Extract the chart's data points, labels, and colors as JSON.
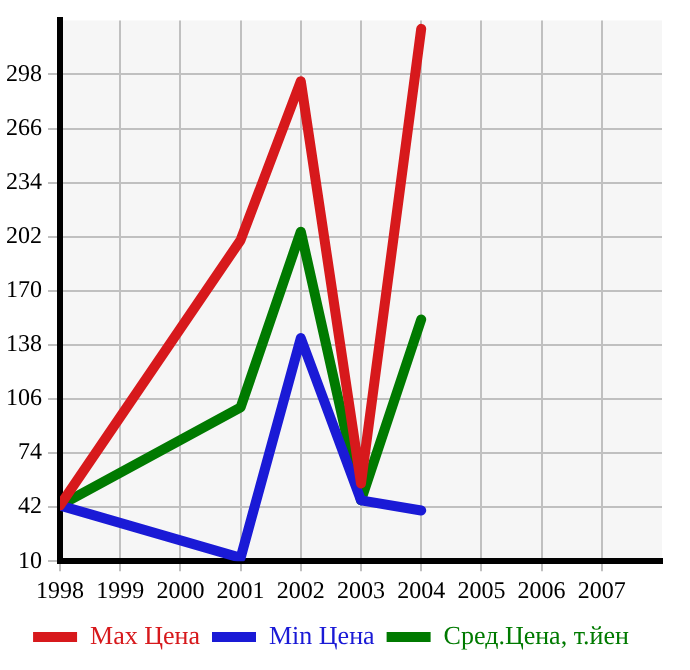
{
  "chart_data": {
    "type": "line",
    "x": [
      1998,
      2001,
      2002,
      2003,
      2004
    ],
    "xlim": [
      1998,
      2008
    ],
    "xticks": [
      1998,
      1999,
      2000,
      2001,
      2002,
      2003,
      2004,
      2005,
      2006,
      2007
    ],
    "ylim": [
      10,
      330
    ],
    "yticks": [
      10,
      42,
      74,
      106,
      138,
      170,
      202,
      234,
      266,
      298
    ],
    "grid": true,
    "legend": "bottom",
    "marker": "none",
    "line_style": "solid",
    "series": [
      {
        "name": "Max Цена",
        "color": "#d7191c",
        "values": [
          43,
          200,
          294,
          56,
          325
        ]
      },
      {
        "name": "Min Цена",
        "color": "#1a1ad6",
        "values": [
          43,
          12,
          142,
          46,
          40
        ]
      },
      {
        "name": "Сред.Цена, т.йен",
        "color": "#007a00",
        "values": [
          43,
          101,
          205,
          46,
          153
        ]
      }
    ]
  }
}
